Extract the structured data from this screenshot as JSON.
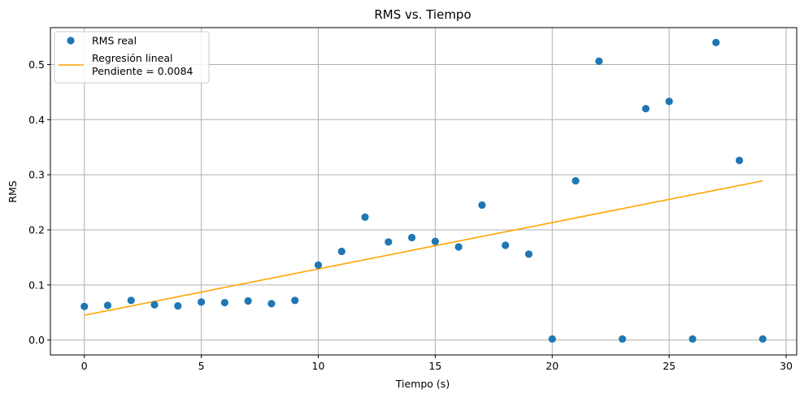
{
  "chart_data": {
    "type": "scatter",
    "title": "RMS vs. Tiempo",
    "xlabel": "Tiempo (s)",
    "ylabel": "RMS",
    "xlim": [
      -1.45,
      30.45
    ],
    "ylim": [
      -0.027,
      0.567
    ],
    "xticks": [
      0,
      5,
      10,
      15,
      20,
      25,
      30
    ],
    "yticks": [
      0.0,
      0.1,
      0.2,
      0.3,
      0.4,
      0.5
    ],
    "xtick_labels": [
      "0",
      "5",
      "10",
      "15",
      "20",
      "25",
      "30"
    ],
    "ytick_labels": [
      "0.0",
      "0.1",
      "0.2",
      "0.3",
      "0.4",
      "0.5"
    ],
    "grid": true,
    "legend_position": "upper-left",
    "series": [
      {
        "name": "RMS real",
        "kind": "scatter",
        "color": "#1f77b4",
        "x": [
          0,
          1,
          2,
          3,
          4,
          5,
          6,
          7,
          8,
          9,
          10,
          11,
          12,
          13,
          14,
          15,
          16,
          17,
          18,
          19,
          20,
          21,
          22,
          23,
          24,
          25,
          26,
          27,
          28,
          29
        ],
        "y": [
          0.061,
          0.063,
          0.072,
          0.064,
          0.062,
          0.069,
          0.068,
          0.071,
          0.066,
          0.072,
          0.136,
          0.161,
          0.223,
          0.178,
          0.186,
          0.179,
          0.169,
          0.245,
          0.172,
          0.156,
          0.002,
          0.289,
          0.506,
          0.002,
          0.42,
          0.433,
          0.002,
          0.54,
          0.326,
          0.002
        ]
      },
      {
        "name": "Regresión lineal\nPendiente = 0.0084",
        "name_lines": [
          "Regresión lineal",
          "Pendiente = 0.0084"
        ],
        "kind": "line",
        "color": "#ffa500",
        "x": [
          0,
          29
        ],
        "y": [
          0.045,
          0.289
        ]
      }
    ]
  }
}
